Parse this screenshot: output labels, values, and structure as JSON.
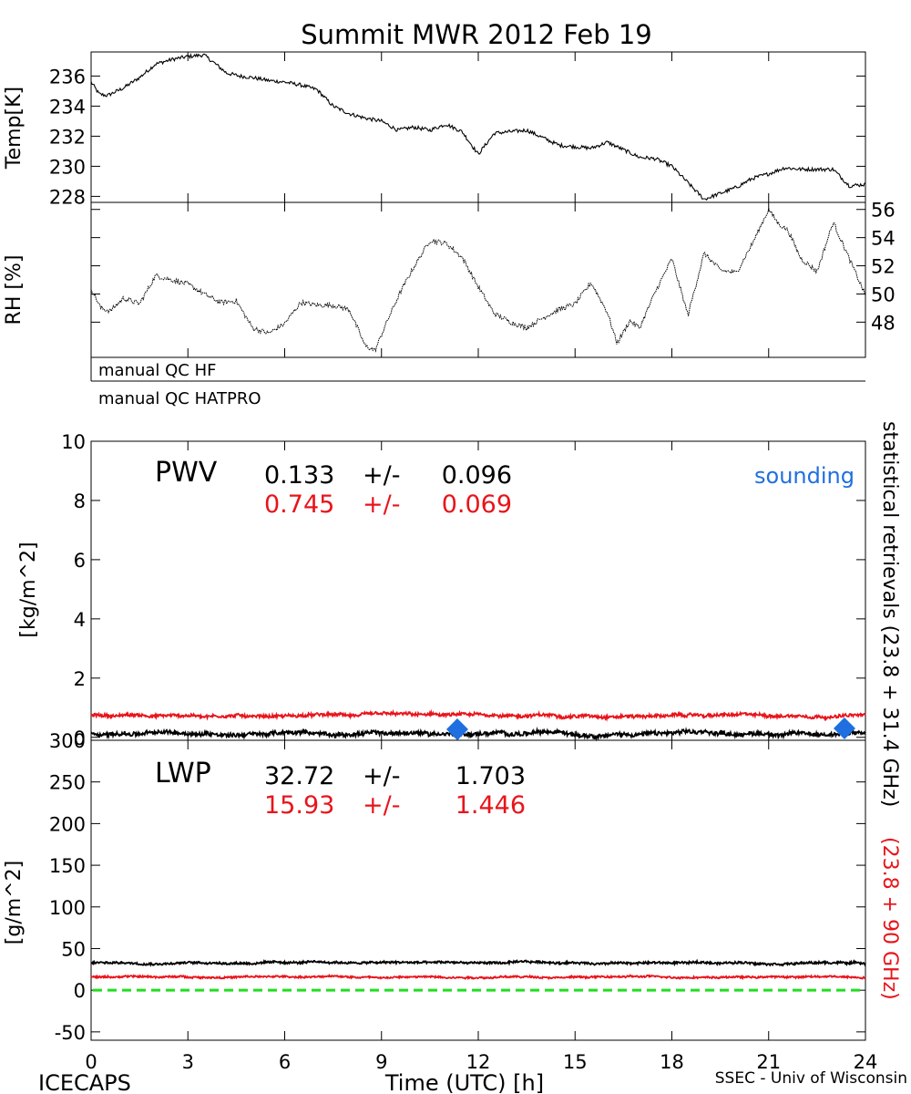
{
  "title": "Summit MWR 2012 Feb 19",
  "footer": {
    "left": "ICECAPS",
    "right": "SSEC - Univ of Wisconsin"
  },
  "x_axis": {
    "label": "Time (UTC) [h]",
    "range": [
      0,
      24
    ],
    "ticks": [
      0,
      3,
      6,
      9,
      12,
      15,
      18,
      21,
      24
    ]
  },
  "qc_bands": [
    "manual QC HF",
    "manual QC HATPRO"
  ],
  "right_labels": {
    "black": "statistical retrievals (23.8 + 31.4 GHz)",
    "red": "(23.8 + 90 GHz)"
  },
  "colors": {
    "series_black": "#000000",
    "series_red": "#e8141b",
    "sounding": "#1f6fe0",
    "zero_line": "#22dd22"
  },
  "chart_data": [
    {
      "type": "line",
      "panel": "temperature",
      "ylabel": "Temp[K]",
      "ylim": [
        227.6,
        237.6
      ],
      "yticks": [
        228,
        230,
        232,
        234,
        236
      ],
      "series": [
        {
          "color": "black",
          "x": [
            0,
            0.25,
            0.5,
            1,
            1.5,
            2,
            2.5,
            3,
            3.5,
            3.8,
            4.2,
            4.6,
            5,
            5.5,
            6,
            6.5,
            7,
            7.5,
            8,
            8.5,
            9,
            9.5,
            10,
            10.5,
            11,
            11.5,
            12,
            12.5,
            13,
            13.5,
            14,
            14.5,
            15,
            15.5,
            16,
            16.5,
            17,
            17.5,
            18,
            18.5,
            19,
            19.5,
            20,
            20.5,
            21,
            21.5,
            22,
            22.5,
            23,
            23.5,
            24
          ],
          "y": [
            235.6,
            234.8,
            234.7,
            235.2,
            235.9,
            236.8,
            237.1,
            237.3,
            237.4,
            236.9,
            236.2,
            236.0,
            235.9,
            235.7,
            235.6,
            235.4,
            235.1,
            234.0,
            233.5,
            233.2,
            233.0,
            232.4,
            232.6,
            232.4,
            232.8,
            232.3,
            230.8,
            232.2,
            232.3,
            232.4,
            231.9,
            231.4,
            231.3,
            231.2,
            231.6,
            231.1,
            230.6,
            230.5,
            230.0,
            228.9,
            227.8,
            228.2,
            228.6,
            229.2,
            229.5,
            229.9,
            229.8,
            229.8,
            229.8,
            228.7,
            228.8
          ]
        }
      ]
    },
    {
      "type": "line",
      "panel": "humidity",
      "ylabel": "RH [%]",
      "ylim": [
        45.5,
        56.5
      ],
      "yticks": [
        48,
        50,
        52,
        54,
        56
      ],
      "series": [
        {
          "color": "black",
          "x": [
            0,
            0.3,
            0.6,
            1,
            1.5,
            2,
            2.5,
            3,
            3.5,
            4,
            4.5,
            5,
            5.5,
            6,
            6.5,
            7,
            7.5,
            8,
            8.5,
            8.8,
            9.2,
            9.6,
            10,
            10.5,
            11,
            11.5,
            12,
            12.5,
            13,
            13.5,
            14,
            14.5,
            15,
            15.5,
            16,
            16.3,
            16.7,
            17,
            17.5,
            18,
            18.5,
            19,
            19.5,
            20,
            20.5,
            21,
            21.3,
            21.6,
            22,
            22.5,
            23,
            23.5,
            24
          ],
          "y": [
            50.4,
            49.0,
            48.8,
            49.7,
            49.3,
            51.3,
            51.0,
            50.7,
            50.0,
            49.4,
            49.5,
            47.6,
            47.2,
            47.9,
            49.4,
            49.2,
            49.2,
            48.9,
            46.3,
            46.0,
            48.2,
            50.2,
            51.9,
            53.8,
            53.6,
            52.6,
            50.5,
            48.6,
            48.0,
            47.6,
            48.3,
            48.9,
            49.3,
            50.8,
            48.7,
            46.5,
            48.1,
            47.6,
            50.2,
            52.5,
            48.5,
            52.9,
            51.7,
            51.5,
            53.6,
            56.0,
            55.0,
            54.5,
            52.5,
            51.6,
            55.1,
            52.5,
            49.9
          ]
        }
      ]
    },
    {
      "type": "line",
      "panel": "pwv",
      "label": "PWV",
      "ylabel": "[kg/m^2]",
      "ylim": [
        -0.1,
        10
      ],
      "yticks": [
        0,
        2,
        4,
        6,
        8,
        10
      ],
      "ytick_labels": [
        "0",
        "2",
        "4",
        "6",
        "8",
        "10"
      ],
      "stats": [
        {
          "color": "black",
          "mean": "0.133",
          "pm": "+/-",
          "std": "0.096"
        },
        {
          "color": "red",
          "mean": "0.745",
          "pm": "+/-",
          "std": "0.069"
        }
      ],
      "series": [
        {
          "color": "black",
          "mean": 0.13,
          "noise": 0.09
        },
        {
          "color": "red",
          "mean": 0.74,
          "noise": 0.07
        }
      ],
      "sounding": {
        "label": "sounding",
        "points": [
          {
            "x": 11.35,
            "y": 0.27
          },
          {
            "x": 23.35,
            "y": 0.3
          }
        ]
      }
    },
    {
      "type": "line",
      "panel": "lwp",
      "label": "LWP",
      "ylabel": "[g/m^2]",
      "ylim": [
        -60,
        300
      ],
      "yticks": [
        -50,
        0,
        50,
        100,
        150,
        200,
        250,
        300
      ],
      "ytick_labels": [
        "-50",
        "0",
        "50",
        "100",
        "150",
        "200",
        "250",
        "300"
      ],
      "stats": [
        {
          "color": "black",
          "mean": "32.72",
          "pm": "+/-",
          "std": "1.703"
        },
        {
          "color": "red",
          "mean": "15.93",
          "pm": "+/-",
          "std": "1.446"
        }
      ],
      "series": [
        {
          "color": "black",
          "mean": 33.0,
          "noise": 1.7
        },
        {
          "color": "red",
          "mean": 16.0,
          "noise": 1.4
        }
      ],
      "reference_line": {
        "y": 0,
        "color": "green",
        "style": "dashed"
      }
    }
  ]
}
